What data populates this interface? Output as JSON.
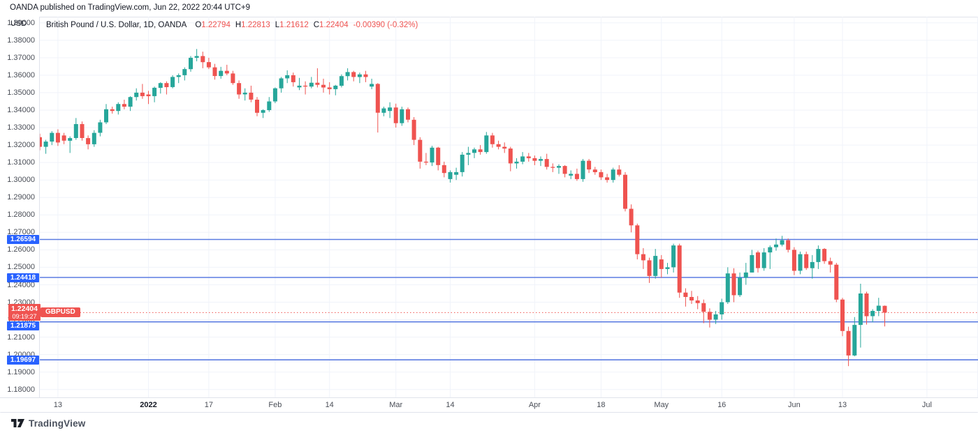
{
  "header": {
    "publish_line": "OANDA published on TradingView.com, Jun 22, 2022 20:44 UTC+9"
  },
  "legend": {
    "title": "British Pound / U.S. Dollar, 1D, OANDA",
    "ohlc": [
      {
        "label": "O",
        "value": "1.22794"
      },
      {
        "label": "H",
        "value": "1.22813"
      },
      {
        "label": "L",
        "value": "1.21612"
      },
      {
        "label": "C",
        "value": "1.22404"
      }
    ],
    "change": "-0.00390 (-0.32%)"
  },
  "price_axis": {
    "currency_label": "USD",
    "ticks": [
      "1.39000",
      "1.38000",
      "1.37000",
      "1.36000",
      "1.35000",
      "1.34000",
      "1.33000",
      "1.32000",
      "1.31000",
      "1.30000",
      "1.29000",
      "1.28000",
      "1.27000",
      "1.26000",
      "1.25000",
      "1.24000",
      "1.23000",
      "1.22000",
      "1.21000",
      "1.20000",
      "1.19000",
      "1.18000"
    ]
  },
  "time_axis": {
    "ticks": [
      {
        "label": "13",
        "i": 3
      },
      {
        "label": "2022",
        "i": 18,
        "bold": true
      },
      {
        "label": "17",
        "i": 28
      },
      {
        "label": "Feb",
        "i": 39
      },
      {
        "label": "14",
        "i": 48
      },
      {
        "label": "Mar",
        "i": 59
      },
      {
        "label": "14",
        "i": 68
      },
      {
        "label": "Apr",
        "i": 82
      },
      {
        "label": "18",
        "i": 93
      },
      {
        "label": "May",
        "i": 103
      },
      {
        "label": "16",
        "i": 113
      },
      {
        "label": "Jun",
        "i": 125
      },
      {
        "label": "13",
        "i": 133
      },
      {
        "label": "Jul",
        "i": 147
      }
    ]
  },
  "chart_data": {
    "type": "candlestick",
    "symbol": "GBPUSD",
    "title": "British Pound / U.S. Dollar",
    "interval": "1D",
    "exchange": "OANDA",
    "ylim": [
      1.1755,
      1.3935
    ],
    "grid": true,
    "price_lines": [
      {
        "label": "1.26594",
        "value": 1.26594
      },
      {
        "label": "1.24418",
        "value": 1.24418
      },
      {
        "label": "1.21875",
        "value": 1.21875
      },
      {
        "label": "1.19697",
        "value": 1.19697
      }
    ],
    "current_price": {
      "value": "1.22404",
      "countdown": "09:19:27",
      "badge": "GBPUSD"
    },
    "candles": [
      [
        1.3245,
        1.3265,
        1.317,
        1.319
      ],
      [
        1.319,
        1.323,
        1.315,
        1.322
      ],
      [
        1.322,
        1.328,
        1.32,
        1.327
      ],
      [
        1.327,
        1.329,
        1.3195,
        1.3215
      ],
      [
        1.3255,
        1.327,
        1.3205,
        1.3225
      ],
      [
        1.3225,
        1.325,
        1.3155,
        1.324
      ],
      [
        1.324,
        1.3355,
        1.323,
        1.332
      ],
      [
        1.332,
        1.3335,
        1.3225,
        1.324
      ],
      [
        1.324,
        1.3255,
        1.3175,
        1.3205
      ],
      [
        1.3205,
        1.3285,
        1.319,
        1.327
      ],
      [
        1.327,
        1.3345,
        1.325,
        1.333
      ],
      [
        1.333,
        1.3435,
        1.332,
        1.3405
      ],
      [
        1.3405,
        1.342,
        1.338,
        1.3395
      ],
      [
        1.3395,
        1.3445,
        1.3375,
        1.3435
      ],
      [
        1.3435,
        1.346,
        1.3405,
        1.342
      ],
      [
        1.342,
        1.348,
        1.3395,
        1.3475
      ],
      [
        1.3475,
        1.3525,
        1.3455,
        1.35
      ],
      [
        1.35,
        1.355,
        1.3465,
        1.348
      ],
      [
        1.349,
        1.351,
        1.3435,
        1.348
      ],
      [
        1.348,
        1.3535,
        1.3445,
        1.3528
      ],
      [
        1.3528,
        1.356,
        1.3495,
        1.3555
      ],
      [
        1.3555,
        1.3565,
        1.349,
        1.3532
      ],
      [
        1.3532,
        1.36,
        1.3525,
        1.359
      ],
      [
        1.359,
        1.361,
        1.3555,
        1.36
      ],
      [
        1.36,
        1.3645,
        1.357,
        1.3635
      ],
      [
        1.3635,
        1.371,
        1.362,
        1.37
      ],
      [
        1.37,
        1.375,
        1.368,
        1.371
      ],
      [
        1.371,
        1.3735,
        1.364,
        1.3675
      ],
      [
        1.3675,
        1.37,
        1.3635,
        1.3645
      ],
      [
        1.3645,
        1.3665,
        1.3575,
        1.3595
      ],
      [
        1.3595,
        1.3648,
        1.358,
        1.3625
      ],
      [
        1.3625,
        1.366,
        1.36,
        1.361
      ],
      [
        1.361,
        1.3625,
        1.3545,
        1.3555
      ],
      [
        1.3555,
        1.357,
        1.3465,
        1.349
      ],
      [
        1.349,
        1.3525,
        1.3455,
        1.35
      ],
      [
        1.35,
        1.354,
        1.3445,
        1.346
      ],
      [
        1.346,
        1.3475,
        1.3365,
        1.3385
      ],
      [
        1.3385,
        1.3405,
        1.3355,
        1.34
      ],
      [
        1.34,
        1.3475,
        1.339,
        1.345
      ],
      [
        1.345,
        1.353,
        1.344,
        1.3525
      ],
      [
        1.3525,
        1.359,
        1.35,
        1.3582
      ],
      [
        1.3582,
        1.3628,
        1.3555,
        1.36
      ],
      [
        1.36,
        1.3615,
        1.3535,
        1.356
      ],
      [
        1.353,
        1.3585,
        1.3515,
        1.354
      ],
      [
        1.354,
        1.3565,
        1.349,
        1.3535
      ],
      [
        1.3535,
        1.359,
        1.3525,
        1.3557
      ],
      [
        1.3557,
        1.364,
        1.353,
        1.3545
      ],
      [
        1.3545,
        1.358,
        1.35,
        1.353
      ],
      [
        1.353,
        1.356,
        1.349,
        1.352
      ],
      [
        1.352,
        1.3545,
        1.3485,
        1.354
      ],
      [
        1.354,
        1.3605,
        1.353,
        1.3595
      ],
      [
        1.3595,
        1.364,
        1.357,
        1.3618
      ],
      [
        1.3618,
        1.3625,
        1.3565,
        1.359
      ],
      [
        1.359,
        1.3615,
        1.3555,
        1.3605
      ],
      [
        1.3605,
        1.3625,
        1.356,
        1.359
      ],
      [
        1.3535,
        1.358,
        1.352,
        1.355
      ],
      [
        1.355,
        1.3555,
        1.3272,
        1.3385
      ],
      [
        1.3385,
        1.342,
        1.3365,
        1.341
      ],
      [
        1.3395,
        1.3445,
        1.3355,
        1.3415
      ],
      [
        1.3415,
        1.3437,
        1.33,
        1.3325
      ],
      [
        1.3325,
        1.342,
        1.331,
        1.3405
      ],
      [
        1.3405,
        1.3415,
        1.333,
        1.3345
      ],
      [
        1.3345,
        1.336,
        1.32,
        1.323
      ],
      [
        1.323,
        1.3245,
        1.3065,
        1.3105
      ],
      [
        1.3105,
        1.3155,
        1.3085,
        1.31
      ],
      [
        1.31,
        1.3195,
        1.308,
        1.3185
      ],
      [
        1.3185,
        1.319,
        1.3055,
        1.3085
      ],
      [
        1.3085,
        1.3105,
        1.3015,
        1.304
      ],
      [
        1.3005,
        1.3055,
        1.2985,
        1.3045
      ],
      [
        1.303,
        1.307,
        1.3,
        1.3045
      ],
      [
        1.3045,
        1.316,
        1.302,
        1.3145
      ],
      [
        1.3145,
        1.319,
        1.3085,
        1.3155
      ],
      [
        1.3155,
        1.3185,
        1.3125,
        1.3175
      ],
      [
        1.3175,
        1.32,
        1.3145,
        1.316
      ],
      [
        1.316,
        1.3275,
        1.315,
        1.3255
      ],
      [
        1.3255,
        1.327,
        1.3185,
        1.3205
      ],
      [
        1.3205,
        1.3225,
        1.3175,
        1.319
      ],
      [
        1.319,
        1.3215,
        1.3155,
        1.318
      ],
      [
        1.318,
        1.319,
        1.305,
        1.3095
      ],
      [
        1.3095,
        1.3125,
        1.3065,
        1.3105
      ],
      [
        1.3105,
        1.316,
        1.309,
        1.3135
      ],
      [
        1.3135,
        1.3155,
        1.3105,
        1.3125
      ],
      [
        1.3125,
        1.314,
        1.3085,
        1.311
      ],
      [
        1.311,
        1.3135,
        1.308,
        1.312
      ],
      [
        1.312,
        1.315,
        1.306,
        1.3075
      ],
      [
        1.3075,
        1.3095,
        1.3045,
        1.307
      ],
      [
        1.307,
        1.309,
        1.3035,
        1.308
      ],
      [
        1.308,
        1.3085,
        1.3015,
        1.3035
      ],
      [
        1.3025,
        1.3055,
        1.3005,
        1.3035
      ],
      [
        1.3035,
        1.3065,
        1.2995,
        1.3005
      ],
      [
        1.3005,
        1.312,
        1.299,
        1.311
      ],
      [
        1.311,
        1.312,
        1.304,
        1.306
      ],
      [
        1.306,
        1.3075,
        1.303,
        1.3045
      ],
      [
        1.3045,
        1.306,
        1.3,
        1.3015
      ],
      [
        1.3015,
        1.3035,
        1.2985,
        1.3
      ],
      [
        1.3,
        1.307,
        1.2985,
        1.306
      ],
      [
        1.306,
        1.3085,
        1.302,
        1.303
      ],
      [
        1.303,
        1.3045,
        1.282,
        1.2835
      ],
      [
        1.2835,
        1.286,
        1.27,
        1.274
      ],
      [
        1.274,
        1.275,
        1.2545,
        1.2575
      ],
      [
        1.2575,
        1.261,
        1.249,
        1.254
      ],
      [
        1.254,
        1.2555,
        1.241,
        1.245
      ],
      [
        1.245,
        1.2605,
        1.2435,
        1.2565
      ],
      [
        1.2545,
        1.257,
        1.244,
        1.249
      ],
      [
        1.249,
        1.2525,
        1.246,
        1.25
      ],
      [
        1.25,
        1.2635,
        1.247,
        1.2625
      ],
      [
        1.2625,
        1.2635,
        1.2325,
        1.2355
      ],
      [
        1.2355,
        1.238,
        1.2275,
        1.233
      ],
      [
        1.233,
        1.2365,
        1.229,
        1.231
      ],
      [
        1.231,
        1.2335,
        1.226,
        1.2295
      ],
      [
        1.2295,
        1.2315,
        1.218,
        1.2245
      ],
      [
        1.2245,
        1.2265,
        1.2155,
        1.22
      ],
      [
        1.22,
        1.225,
        1.2175,
        1.223
      ],
      [
        1.223,
        1.232,
        1.22,
        1.23
      ],
      [
        1.23,
        1.25,
        1.229,
        1.2465
      ],
      [
        1.2465,
        1.2495,
        1.23,
        1.234
      ],
      [
        1.234,
        1.247,
        1.233,
        1.244
      ],
      [
        1.244,
        1.2525,
        1.24,
        1.247
      ],
      [
        1.247,
        1.26,
        1.247,
        1.257
      ],
      [
        1.2585,
        1.2595,
        1.247,
        1.2495
      ],
      [
        1.2495,
        1.261,
        1.248,
        1.2585
      ],
      [
        1.2585,
        1.2625,
        1.249,
        1.2615
      ],
      [
        1.2615,
        1.2665,
        1.2595,
        1.263
      ],
      [
        1.263,
        1.268,
        1.262,
        1.2655
      ],
      [
        1.2655,
        1.2665,
        1.2585,
        1.26
      ],
      [
        1.26,
        1.2615,
        1.2455,
        1.248
      ],
      [
        1.248,
        1.259,
        1.246,
        1.2575
      ],
      [
        1.2575,
        1.259,
        1.2485,
        1.2495
      ],
      [
        1.2495,
        1.257,
        1.2435,
        1.253
      ],
      [
        1.253,
        1.2625,
        1.249,
        1.2605
      ],
      [
        1.2605,
        1.261,
        1.252,
        1.2535
      ],
      [
        1.2535,
        1.2555,
        1.247,
        1.2515
      ],
      [
        1.2515,
        1.2525,
        1.23,
        1.2315
      ],
      [
        1.2315,
        1.2325,
        1.2105,
        1.2135
      ],
      [
        1.2135,
        1.216,
        1.1934,
        1.1995
      ],
      [
        1.1995,
        1.2215,
        1.199,
        1.217
      ],
      [
        1.217,
        1.2406,
        1.204,
        1.235
      ],
      [
        1.235,
        1.236,
        1.2172,
        1.222
      ],
      [
        1.222,
        1.226,
        1.2185,
        1.225
      ],
      [
        1.225,
        1.2325,
        1.222,
        1.228
      ],
      [
        1.22794,
        1.22813,
        1.21612,
        1.22404
      ]
    ]
  },
  "colors": {
    "up": "#26a69a",
    "down": "#ef5350",
    "grid": "#f0f3fa",
    "ray_line": "#5b7ce2",
    "ray_label_bg": "#2962ff",
    "current_label_bg": "#ef5350",
    "axis_text": "#4a4e57",
    "main_text": "#131722"
  },
  "footer": {
    "brand": "TradingView"
  }
}
